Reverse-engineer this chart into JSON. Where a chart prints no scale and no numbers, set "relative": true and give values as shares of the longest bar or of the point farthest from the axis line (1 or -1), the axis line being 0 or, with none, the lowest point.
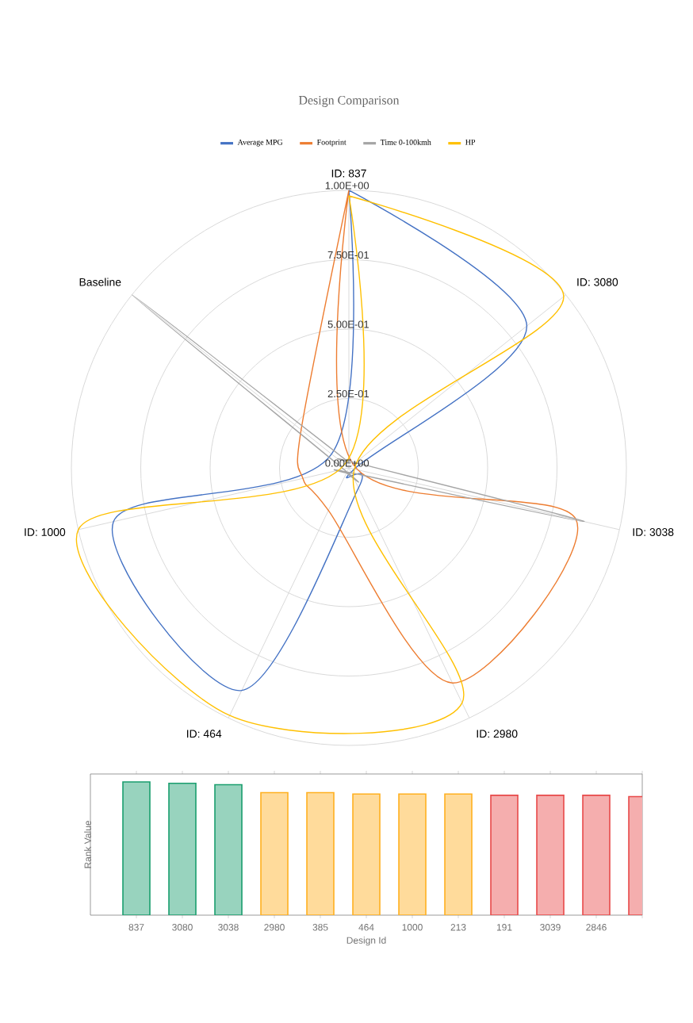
{
  "chart_data": [
    {
      "type": "radar",
      "title": "Design Comparison",
      "categories": [
        "ID: 837",
        "ID: 3080",
        "ID: 3038",
        "ID: 2980",
        "ID: 464",
        "ID: 1000",
        "Baseline"
      ],
      "series": [
        {
          "name": "Average MPG",
          "color": "#4472c4",
          "values": [
            1.0,
            0.82,
            0.02,
            0.08,
            0.89,
            0.87,
            0.08
          ]
        },
        {
          "name": "Footprint",
          "color": "#ed7d31",
          "values": [
            1.0,
            0.02,
            0.84,
            0.86,
            0.17,
            0.17,
            0.22
          ]
        },
        {
          "name": "Time 0-100kmh",
          "color": "#a5a5a5",
          "values": [
            0.02,
            0.03,
            0.87,
            0.02,
            0.02,
            0.02,
            1.0
          ]
        },
        {
          "name": "HP",
          "color": "#ffc000",
          "values": [
            0.98,
            0.99,
            0.02,
            0.94,
            0.99,
            1.0,
            0.02
          ]
        }
      ],
      "ylim": [
        0,
        1
      ],
      "yticks": [
        {
          "value": 0,
          "label": "0.00E+00"
        },
        {
          "value": 0.25,
          "label": "2.50E-01"
        },
        {
          "value": 0.5,
          "label": "5.00E-01"
        },
        {
          "value": 0.75,
          "label": "7.50E-01"
        },
        {
          "value": 1,
          "label": "1.00E+00"
        }
      ],
      "grid": true,
      "legend": "top"
    },
    {
      "type": "bar",
      "xlabel": "Design Id",
      "ylabel": "Rank Value",
      "relative": true,
      "categories": [
        "837",
        "3080",
        "3038",
        "2980",
        "385",
        "464",
        "1000",
        "213",
        "191",
        "3039",
        "2846",
        null
      ],
      "values": [
        1,
        0.99,
        0.98,
        0.92,
        0.92,
        0.91,
        0.91,
        0.91,
        0.9,
        0.9,
        0.9,
        0.89
      ],
      "colors": [
        "#1a9e6e",
        "#1a9e6e",
        "#1a9e6e",
        "#ffb020",
        "#ffb020",
        "#ffb020",
        "#ffb020",
        "#ffb020",
        "#e84a4a",
        "#e84a4a",
        "#e84a4a",
        "#e84a4a"
      ]
    }
  ]
}
